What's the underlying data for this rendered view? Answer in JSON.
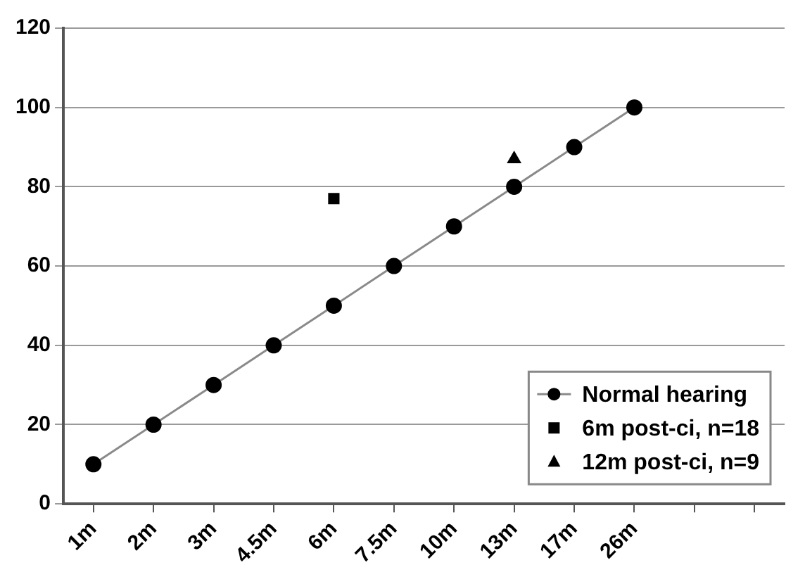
{
  "chart_data": {
    "type": "line",
    "categories": [
      "1m",
      "2m",
      "3m",
      "4.5m",
      "6m",
      "7.5m",
      "10m",
      "13m",
      "17m",
      "26m",
      null,
      null
    ],
    "series": [
      {
        "name": "Normal hearing",
        "color": "#000000",
        "values": [
          10,
          20,
          30,
          40,
          50,
          60,
          70,
          80,
          90,
          100,
          null,
          null
        ],
        "marker": "circle"
      },
      {
        "name": "6m post-ci, n=18",
        "type": "scatter",
        "color": "#000000",
        "x": [
          "6m"
        ],
        "values": [
          77
        ],
        "marker": "square"
      },
      {
        "name": "12m post-ci, n=9",
        "type": "scatter",
        "color": "#000000",
        "x": [
          "13m"
        ],
        "values": [
          87
        ],
        "marker": "triangle"
      }
    ],
    "ylim": [
      0,
      120
    ],
    "yticks": [
      0,
      20,
      40,
      60,
      80,
      100,
      120
    ],
    "grid": "y",
    "legend": "bottom right"
  }
}
